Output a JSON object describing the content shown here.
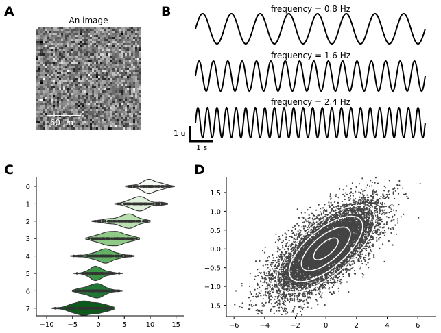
{
  "figure": {
    "panel_labels": [
      "A",
      "B",
      "C",
      "D"
    ]
  },
  "chart_data": [
    {
      "panel": "A",
      "type": "heatmap",
      "title": "An image",
      "description_colormap": "gray",
      "scalebar_label": "60 um"
    },
    {
      "panel": "B",
      "type": "line",
      "series": [
        {
          "name": "frequency = 0.8 Hz",
          "frequency": 0.8,
          "amplitude": 1
        },
        {
          "name": "frequency = 1.6 Hz",
          "frequency": 1.6,
          "amplitude": 1
        },
        {
          "name": "frequency = 2.4 Hz",
          "frequency": 2.4,
          "amplitude": 1
        }
      ],
      "x_range": [
        0,
        10
      ],
      "scalebar_y_label": "1 u",
      "scalebar_x_label": "1 s",
      "color": "#000000"
    },
    {
      "panel": "C",
      "type": "violin",
      "orientation": "horizontal",
      "categories": [
        "0",
        "1",
        "2",
        "3",
        "4",
        "5",
        "6",
        "7"
      ],
      "centers": [
        10,
        8,
        5,
        3,
        1,
        0,
        -1,
        -2
      ],
      "spreads": [
        1.7,
        1.9,
        2.4,
        2.4,
        2.0,
        1.4,
        2.0,
        2.4
      ],
      "xlim": [
        -12,
        16.5
      ],
      "xticks": [
        -10,
        -5,
        0,
        5,
        10,
        15
      ],
      "colors": [
        "#f4faf1",
        "#dff1db",
        "#b9dfb0",
        "#8fcb87",
        "#62b165",
        "#3b9446",
        "#217535",
        "#0d5a1d"
      ]
    },
    {
      "panel": "D",
      "type": "scatter",
      "n_points": 10000,
      "xlim": [
        -6.5,
        7.2
      ],
      "ylim": [
        -1.8,
        1.9
      ],
      "xticks": [
        -6,
        -4,
        -2,
        0,
        2,
        4,
        6
      ],
      "yticks": [
        -1.5,
        -1.0,
        -0.5,
        0.0,
        0.5,
        1.0,
        1.5
      ],
      "point_color": "#444444",
      "contour_color": "#ffffff"
    }
  ]
}
